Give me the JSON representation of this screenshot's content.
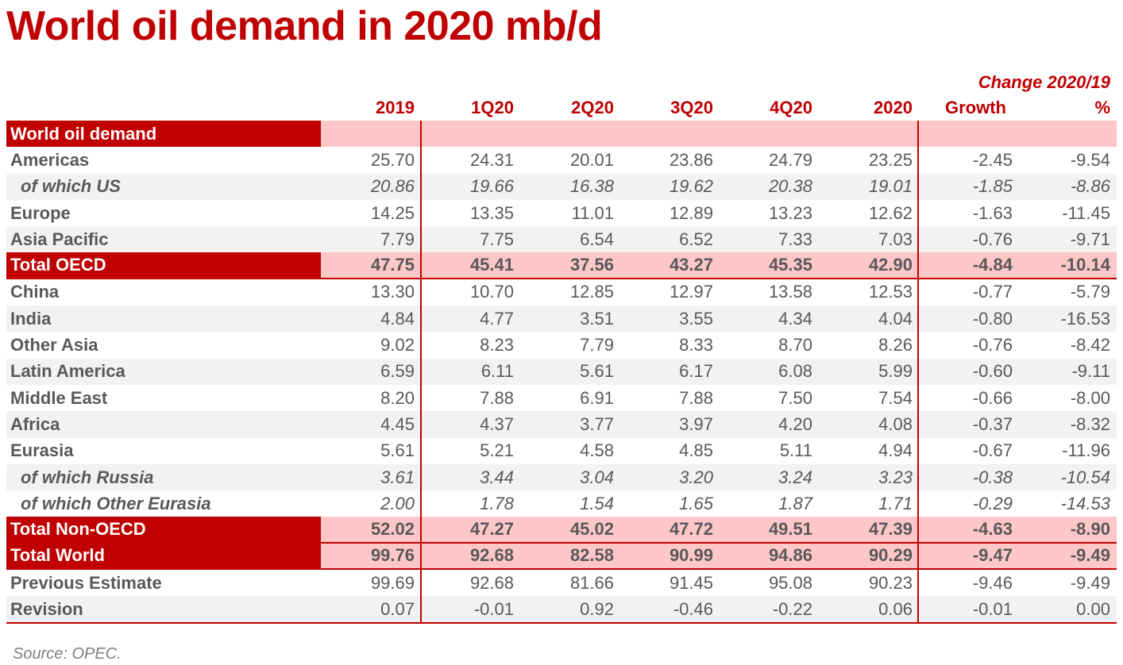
{
  "title": "World oil demand in 2020 mb/d",
  "change_header": "Change 2020/19",
  "columns": [
    "2019",
    "1Q20",
    "2Q20",
    "3Q20",
    "4Q20",
    "2020",
    "Growth",
    "%"
  ],
  "section_header": "World oil demand",
  "rows": [
    {
      "label": "Americas",
      "type": "normal",
      "values": [
        "25.70",
        "24.31",
        "20.01",
        "23.86",
        "24.79",
        "23.25",
        "-2.45",
        "-9.54"
      ]
    },
    {
      "label": "of which US",
      "type": "italic",
      "values": [
        "20.86",
        "19.66",
        "16.38",
        "19.62",
        "20.38",
        "19.01",
        "-1.85",
        "-8.86"
      ]
    },
    {
      "label": "Europe",
      "type": "normal",
      "values": [
        "14.25",
        "13.35",
        "11.01",
        "12.89",
        "13.23",
        "12.62",
        "-1.63",
        "-11.45"
      ]
    },
    {
      "label": "Asia Pacific",
      "type": "normal",
      "values": [
        "7.79",
        "7.75",
        "6.54",
        "6.52",
        "7.33",
        "7.03",
        "-0.76",
        "-9.71"
      ]
    },
    {
      "label": "Total OECD",
      "type": "total",
      "values": [
        "47.75",
        "45.41",
        "37.56",
        "43.27",
        "45.35",
        "42.90",
        "-4.84",
        "-10.14"
      ]
    },
    {
      "label": "China",
      "type": "normal",
      "values": [
        "13.30",
        "10.70",
        "12.85",
        "12.97",
        "13.58",
        "12.53",
        "-0.77",
        "-5.79"
      ]
    },
    {
      "label": "India",
      "type": "normal",
      "values": [
        "4.84",
        "4.77",
        "3.51",
        "3.55",
        "4.34",
        "4.04",
        "-0.80",
        "-16.53"
      ]
    },
    {
      "label": "Other Asia",
      "type": "normal",
      "values": [
        "9.02",
        "8.23",
        "7.79",
        "8.33",
        "8.70",
        "8.26",
        "-0.76",
        "-8.42"
      ]
    },
    {
      "label": "Latin America",
      "type": "normal",
      "values": [
        "6.59",
        "6.11",
        "5.61",
        "6.17",
        "6.08",
        "5.99",
        "-0.60",
        "-9.11"
      ]
    },
    {
      "label": "Middle East",
      "type": "normal",
      "values": [
        "8.20",
        "7.88",
        "6.91",
        "7.88",
        "7.50",
        "7.54",
        "-0.66",
        "-8.00"
      ]
    },
    {
      "label": "Africa",
      "type": "normal",
      "values": [
        "4.45",
        "4.37",
        "3.77",
        "3.97",
        "4.20",
        "4.08",
        "-0.37",
        "-8.32"
      ]
    },
    {
      "label": "Eurasia",
      "type": "normal",
      "values": [
        "5.61",
        "5.21",
        "4.58",
        "4.85",
        "5.11",
        "4.94",
        "-0.67",
        "-11.96"
      ]
    },
    {
      "label": "of which Russia",
      "type": "italic",
      "values": [
        "3.61",
        "3.44",
        "3.04",
        "3.20",
        "3.24",
        "3.23",
        "-0.38",
        "-10.54"
      ]
    },
    {
      "label": "of which Other Eurasia",
      "type": "italic",
      "values": [
        "2.00",
        "1.78",
        "1.54",
        "1.65",
        "1.87",
        "1.71",
        "-0.29",
        "-14.53"
      ]
    },
    {
      "label": "Total Non-OECD",
      "type": "total",
      "values": [
        "52.02",
        "47.27",
        "45.02",
        "47.72",
        "49.51",
        "47.39",
        "-4.63",
        "-8.90"
      ]
    },
    {
      "label": "Total World",
      "type": "total",
      "values": [
        "99.76",
        "92.68",
        "82.58",
        "90.99",
        "94.86",
        "90.29",
        "-9.47",
        "-9.49"
      ]
    },
    {
      "label": "Previous Estimate",
      "type": "normal",
      "values": [
        "99.69",
        "92.68",
        "81.66",
        "91.45",
        "95.08",
        "90.23",
        "-9.46",
        "-9.49"
      ]
    },
    {
      "label": "Revision",
      "type": "normal",
      "values": [
        "0.07",
        "-0.01",
        "0.92",
        "-0.46",
        "-0.22",
        "0.06",
        "-0.01",
        "0.00"
      ]
    }
  ],
  "source": "Source: OPEC.",
  "colors": {
    "accent": "#c00000",
    "highlight": "#ffc7c7",
    "stripe": "#f2f2f2",
    "text": "#595959"
  }
}
